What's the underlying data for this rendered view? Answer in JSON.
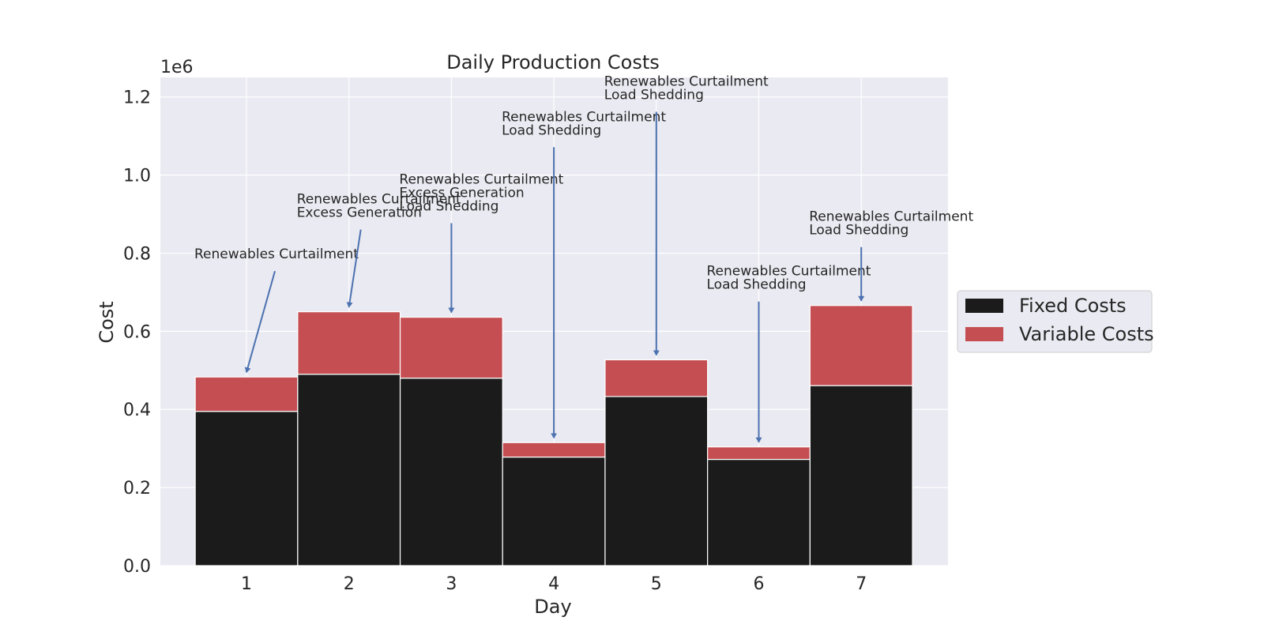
{
  "chart_data": {
    "type": "bar",
    "stacked": true,
    "title": "Daily Production Costs",
    "xlabel": "Day",
    "ylabel": "Cost",
    "y_offset_label": "1e6",
    "ylim": [
      0,
      1.25
    ],
    "y_ticks": [
      "0.0",
      "0.2",
      "0.4",
      "0.6",
      "0.8",
      "1.0",
      "1.2"
    ],
    "grid": true,
    "legend_position": "right",
    "categories": [
      "1",
      "2",
      "3",
      "4",
      "5",
      "6",
      "7"
    ],
    "series": [
      {
        "name": "Fixed Costs",
        "color": "#1b1b1b",
        "values": [
          0.395,
          0.49,
          0.48,
          0.278,
          0.433,
          0.272,
          0.461
        ]
      },
      {
        "name": "Variable Costs",
        "color": "#c44e52",
        "values": [
          0.088,
          0.16,
          0.156,
          0.037,
          0.094,
          0.032,
          0.205
        ]
      }
    ],
    "annotations": [
      {
        "category": "1",
        "lines": [
          "Renewables Curtailment"
        ]
      },
      {
        "category": "2",
        "lines": [
          "Renewables Curtailment",
          "Excess Generation"
        ]
      },
      {
        "category": "3",
        "lines": [
          "Renewables Curtailment",
          "Excess Generation",
          "Load Shedding"
        ]
      },
      {
        "category": "4",
        "lines": [
          "Renewables Curtailment",
          "Load Shedding"
        ]
      },
      {
        "category": "5",
        "lines": [
          "Renewables Curtailment",
          "Load Shedding"
        ]
      },
      {
        "category": "6",
        "lines": [
          "Renewables Curtailment",
          "Load Shedding"
        ]
      },
      {
        "category": "7",
        "lines": [
          "Renewables Curtailment",
          "Load Shedding"
        ]
      }
    ],
    "colors": {
      "background": "#eaeaf2",
      "grid": "#ffffff",
      "arrow": "#4c72b0"
    }
  }
}
